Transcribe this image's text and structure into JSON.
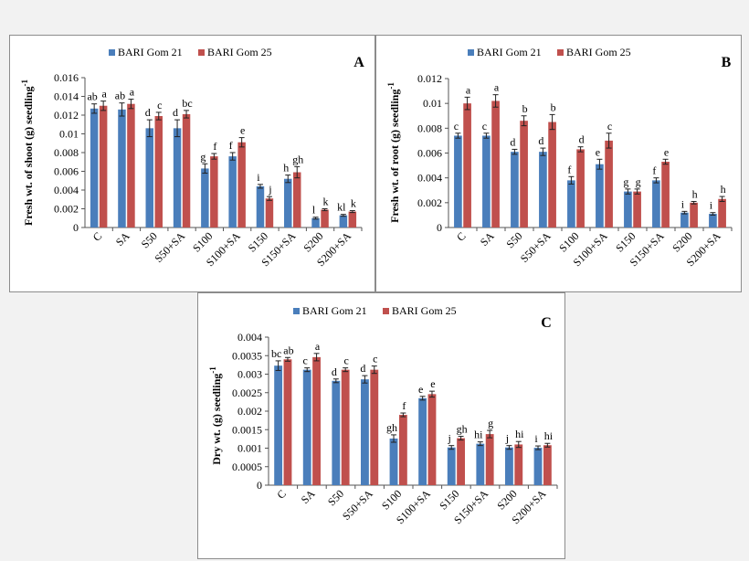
{
  "colors": {
    "series1": "#4a7ebb",
    "series2": "#c0504d",
    "axis": "#555555"
  },
  "chart_data": [
    {
      "type": "bar",
      "panel_label": "A",
      "ylabel": "Fresh wt. of shoot (g) seedling",
      "ylabel_superscript": "-1",
      "categories": [
        "C",
        "SA",
        "S50",
        "S50+SA",
        "S100",
        "S100+SA",
        "S150",
        "S150+SA",
        "S200",
        "S200+SA"
      ],
      "ylim": [
        0,
        0.016
      ],
      "yticks": [
        "0",
        "0.002",
        "0.004",
        "0.006",
        "0.008",
        "0.01",
        "0.012",
        "0.014",
        "0.016"
      ],
      "legend": [
        "BARI Gom 21",
        "BARI Gom 25"
      ],
      "series": [
        {
          "name": "BARI Gom 21",
          "values": [
            0.0127,
            0.0126,
            0.0106,
            0.0106,
            0.0063,
            0.0076,
            0.0044,
            0.0052,
            0.001,
            0.0013
          ],
          "errors": [
            0.0005,
            0.0007,
            0.0009,
            0.0009,
            0.0005,
            0.0004,
            0.0002,
            0.0004,
            0.0001,
            0.0001
          ],
          "letters": [
            "ab",
            "ab",
            "d",
            "d",
            "g",
            "f",
            "i",
            "h",
            "l",
            "kl"
          ]
        },
        {
          "name": "BARI Gom 25",
          "values": [
            0.013,
            0.0132,
            0.0119,
            0.0121,
            0.0076,
            0.0091,
            0.0031,
            0.0059,
            0.0019,
            0.0017
          ],
          "errors": [
            0.0005,
            0.0005,
            0.0004,
            0.0004,
            0.0003,
            0.0005,
            0.0002,
            0.0006,
            0.0001,
            0.0001
          ],
          "letters": [
            "a",
            "a",
            "c",
            "bc",
            "f",
            "e",
            "j",
            "gh",
            "k",
            "k"
          ]
        }
      ]
    },
    {
      "type": "bar",
      "panel_label": "B",
      "ylabel": "Fresh wt. of root (g) seedling",
      "ylabel_superscript": "-1",
      "categories": [
        "C",
        "SA",
        "S50",
        "S50+SA",
        "S100",
        "S100+SA",
        "S150",
        "S150+SA",
        "S200",
        "S200+SA"
      ],
      "ylim": [
        0,
        0.012
      ],
      "yticks": [
        "0",
        "0.002",
        "0.004",
        "0.006",
        "0.008",
        "0.01",
        "0.012"
      ],
      "legend": [
        "BARI Gom 21",
        "BARI Gom 25"
      ],
      "series": [
        {
          "name": "BARI Gom 21",
          "values": [
            0.0074,
            0.0074,
            0.0061,
            0.0061,
            0.0038,
            0.0051,
            0.0029,
            0.0038,
            0.0012,
            0.0011
          ],
          "errors": [
            0.0002,
            0.0002,
            0.0002,
            0.0003,
            0.0003,
            0.0004,
            0.0002,
            0.0002,
            0.0001,
            0.0001
          ],
          "letters": [
            "c",
            "c",
            "d",
            "d",
            "f",
            "e",
            "g",
            "f",
            "i",
            "i"
          ]
        },
        {
          "name": "BARI Gom 25",
          "values": [
            0.01,
            0.0102,
            0.0086,
            0.0085,
            0.0063,
            0.007,
            0.0029,
            0.0053,
            0.002,
            0.0023
          ],
          "errors": [
            0.0005,
            0.0005,
            0.0004,
            0.0006,
            0.0002,
            0.0006,
            0.0002,
            0.0002,
            0.0001,
            0.0002
          ],
          "letters": [
            "a",
            "a",
            "b",
            "b",
            "d",
            "c",
            "g",
            "e",
            "h",
            "h"
          ]
        }
      ]
    },
    {
      "type": "bar",
      "panel_label": "C",
      "ylabel": "Dry wt. (g) seedling",
      "ylabel_superscript": "-1",
      "categories": [
        "C",
        "SA",
        "S50",
        "S50+SA",
        "S100",
        "S100+SA",
        "S150",
        "S150+SA",
        "S200",
        "S200+SA"
      ],
      "ylim": [
        0,
        0.004
      ],
      "yticks": [
        "0",
        "0.0005",
        "0.001",
        "0.0015",
        "0.002",
        "0.0025",
        "0.003",
        "0.0035",
        "0.004"
      ],
      "legend": [
        "BARI Gom 21",
        "BARI Gom 25"
      ],
      "series": [
        {
          "name": "BARI Gom 21",
          "values": [
            0.00323,
            0.00312,
            0.00282,
            0.00286,
            0.00126,
            0.00235,
            0.00102,
            0.00112,
            0.00102,
            0.00101
          ],
          "errors": [
            0.00013,
            5e-05,
            5e-05,
            0.0001,
            0.0001,
            5e-05,
            5e-05,
            5e-05,
            5e-05,
            5e-05
          ],
          "letters": [
            "bc",
            "c",
            "d",
            "d",
            "gh",
            "e",
            "j",
            "hi",
            "j",
            "i"
          ]
        },
        {
          "name": "BARI Gom 25",
          "values": [
            0.0034,
            0.00346,
            0.00312,
            0.00312,
            0.0019,
            0.00246,
            0.00127,
            0.00138,
            0.0011,
            0.00108
          ],
          "errors": [
            5e-05,
            0.0001,
            5e-05,
            0.0001,
            5e-05,
            8e-05,
            5e-05,
            0.0001,
            8e-05,
            5e-05
          ],
          "letters": [
            "ab",
            "a",
            "c",
            "c",
            "f",
            "e",
            "gh",
            "g",
            "hi",
            "hi"
          ]
        }
      ]
    }
  ]
}
